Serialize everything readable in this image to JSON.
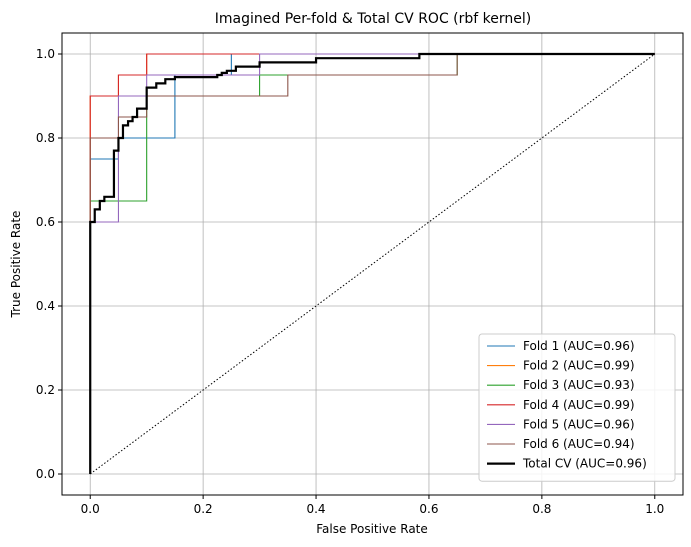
{
  "chart_data": {
    "type": "line",
    "title": "Imagined Per-fold & Total CV ROC (rbf kernel)",
    "xlabel": "False Positive Rate",
    "ylabel": "True Positive Rate",
    "xlim": [
      -0.05,
      1.05
    ],
    "ylim": [
      -0.05,
      1.05
    ],
    "xticks": [
      0.0,
      0.2,
      0.4,
      0.6,
      0.8,
      1.0
    ],
    "yticks": [
      0.0,
      0.2,
      0.4,
      0.6,
      0.8,
      1.0
    ],
    "xtick_labels": [
      "0.0",
      "0.2",
      "0.4",
      "0.6",
      "0.8",
      "1.0"
    ],
    "ytick_labels": [
      "0.0",
      "0.2",
      "0.4",
      "0.6",
      "0.8",
      "1.0"
    ],
    "grid": true,
    "legend_position": "lower-right",
    "diagonal": {
      "x": [
        0,
        1
      ],
      "y": [
        0,
        1
      ],
      "color": "#000000",
      "style": "dotted"
    },
    "series": [
      {
        "name": "Fold 1 (AUC=0.96)",
        "color": "#1f77b4",
        "x": [
          0,
          0,
          0,
          0.05,
          0.05,
          0.15,
          0.15,
          0.25,
          0.25,
          0.65,
          0.65,
          1.0
        ],
        "y": [
          0,
          0.6,
          0.75,
          0.75,
          0.8,
          0.8,
          0.95,
          0.95,
          1.0,
          1.0,
          1.0,
          1.0
        ]
      },
      {
        "name": "Fold 2 (AUC=0.99)",
        "color": "#ff7f0e",
        "x": [
          0,
          0,
          0,
          0.05,
          0.05,
          0.1,
          0.1,
          0.65,
          0.65,
          1.0
        ],
        "y": [
          0,
          0.6,
          0.9,
          0.9,
          0.95,
          0.95,
          1.0,
          1.0,
          1.0,
          1.0
        ]
      },
      {
        "name": "Fold 3 (AUC=0.93)",
        "color": "#2ca02c",
        "x": [
          0,
          0,
          0,
          0.1,
          0.1,
          0.3,
          0.3,
          0.65,
          0.65,
          1.0
        ],
        "y": [
          0,
          0.6,
          0.65,
          0.65,
          0.9,
          0.9,
          0.95,
          0.95,
          1.0,
          1.0
        ]
      },
      {
        "name": "Fold 4 (AUC=0.99)",
        "color": "#d62728",
        "x": [
          0,
          0,
          0,
          0.05,
          0.05,
          0.1,
          0.1,
          1.0
        ],
        "y": [
          0,
          0.6,
          0.9,
          0.9,
          0.95,
          0.95,
          1.0,
          1.0
        ]
      },
      {
        "name": "Fold 5 (AUC=0.96)",
        "color": "#9467bd",
        "x": [
          0,
          0,
          0.05,
          0.05,
          0.1,
          0.1,
          0.3,
          0.3,
          0.65,
          0.65,
          1.0
        ],
        "y": [
          0,
          0.6,
          0.6,
          0.9,
          0.9,
          0.95,
          0.95,
          1.0,
          1.0,
          1.0,
          1.0
        ]
      },
      {
        "name": "Fold 6 (AUC=0.94)",
        "color": "#8c564b",
        "x": [
          0,
          0,
          0,
          0.05,
          0.05,
          0.1,
          0.1,
          0.35,
          0.35,
          0.65,
          0.65,
          1.0
        ],
        "y": [
          0,
          0.6,
          0.8,
          0.8,
          0.85,
          0.85,
          0.9,
          0.9,
          0.95,
          0.95,
          1.0,
          1.0
        ]
      },
      {
        "name": "Total CV (AUC=0.96)",
        "color": "#000000",
        "bold": true,
        "x": [
          0,
          0,
          0.008,
          0.008,
          0.017,
          0.017,
          0.025,
          0.025,
          0.042,
          0.042,
          0.05,
          0.05,
          0.058,
          0.058,
          0.067,
          0.067,
          0.075,
          0.075,
          0.083,
          0.083,
          0.1,
          0.1,
          0.117,
          0.117,
          0.133,
          0.133,
          0.142,
          0.142,
          0.15,
          0.15,
          0.225,
          0.225,
          0.233,
          0.233,
          0.242,
          0.242,
          0.258,
          0.258,
          0.3,
          0.3,
          0.4,
          0.4,
          0.583,
          0.583,
          0.65,
          0.65,
          1.0
        ],
        "y": [
          0,
          0.6,
          0.6,
          0.63,
          0.63,
          0.65,
          0.65,
          0.66,
          0.66,
          0.77,
          0.77,
          0.8,
          0.8,
          0.83,
          0.83,
          0.84,
          0.84,
          0.85,
          0.85,
          0.87,
          0.87,
          0.92,
          0.92,
          0.93,
          0.93,
          0.94,
          0.94,
          0.94,
          0.94,
          0.945,
          0.945,
          0.95,
          0.95,
          0.955,
          0.955,
          0.96,
          0.96,
          0.97,
          0.97,
          0.98,
          0.98,
          0.99,
          0.99,
          1.0,
          1.0,
          1.0,
          1.0
        ]
      }
    ]
  }
}
